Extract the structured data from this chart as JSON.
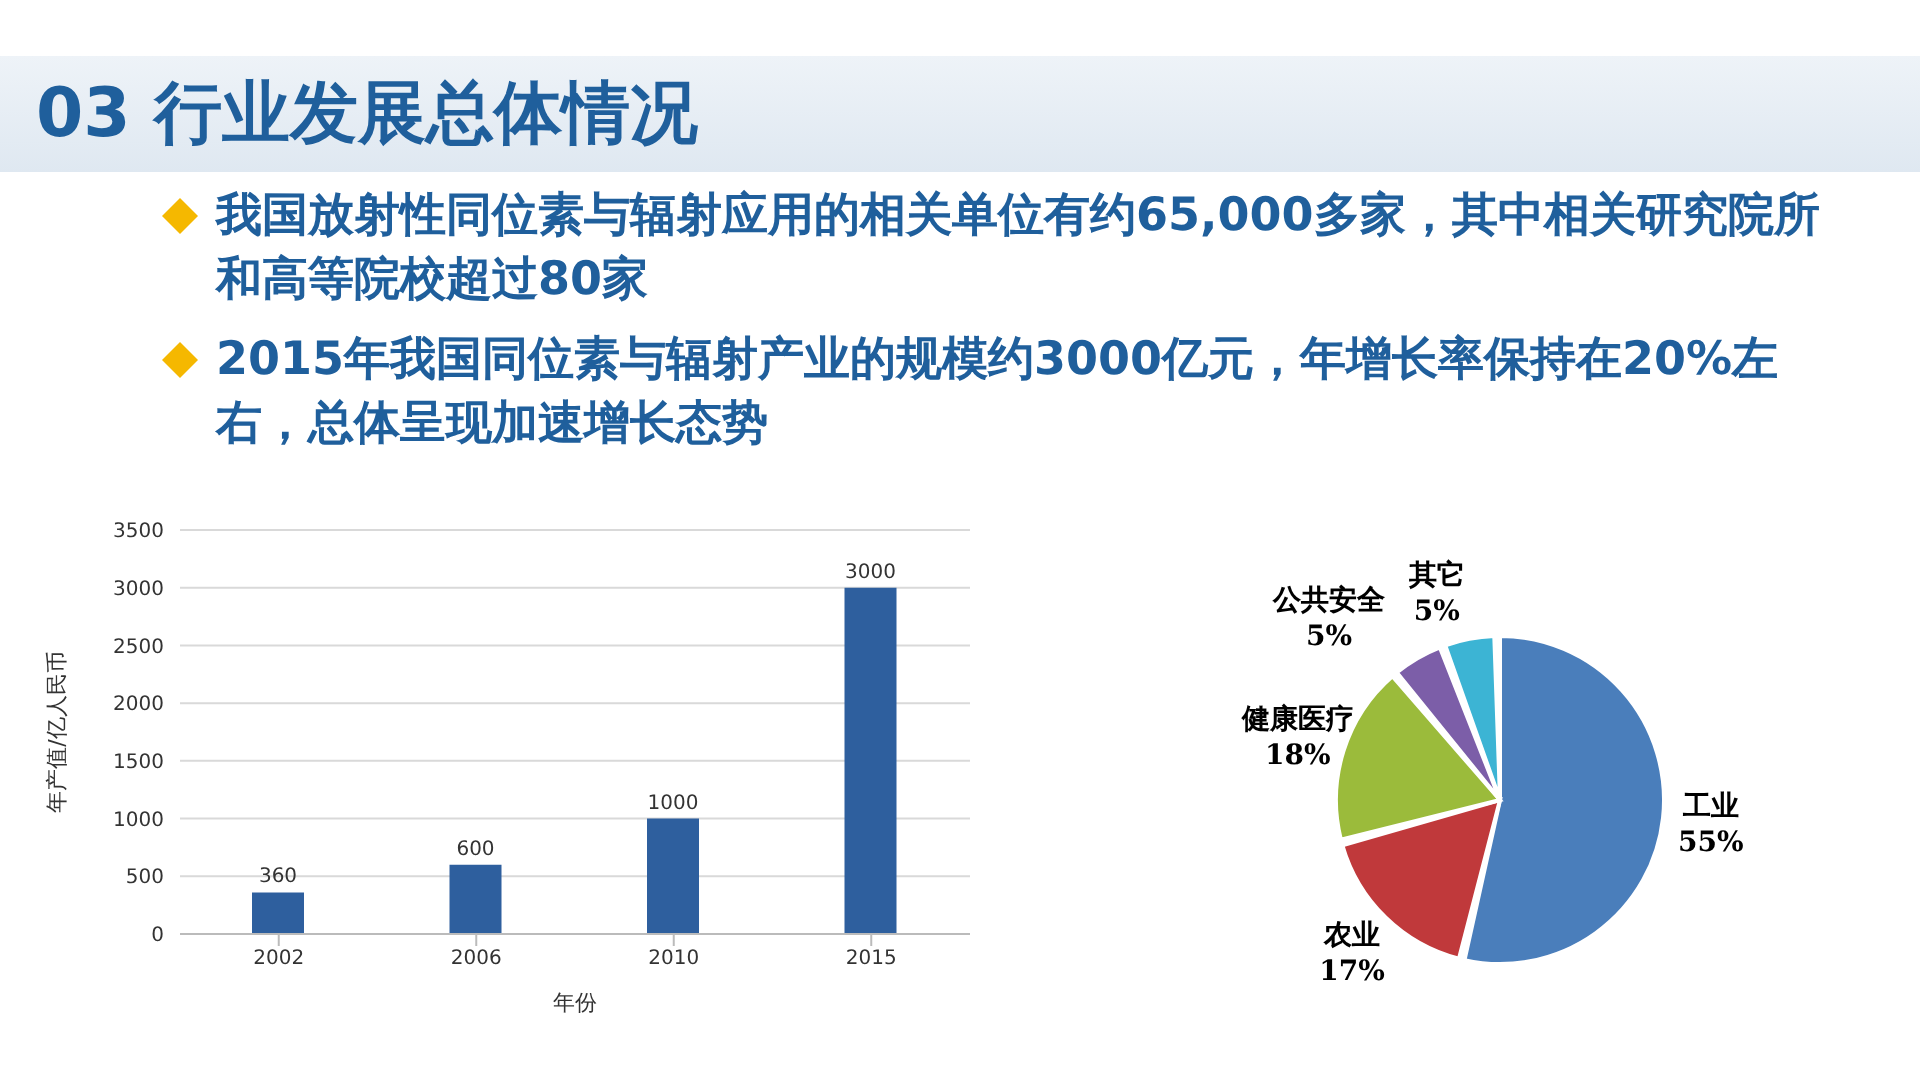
{
  "chart_data": [
    {
      "type": "bar",
      "title": "03 行业发展总体情况",
      "annotations": [
        "我国放射性同位素与辐射应用的相关单位有约65,000多家，其中相关研究院所和高等院校超过80家",
        "2015年我国同位素与辐射产业的规模约3000亿元，年增长率保持在20%左右，总体呈现加速增长态势"
      ],
      "categories": [
        "2002",
        "2006",
        "2010",
        "2015"
      ],
      "values": [
        360,
        600,
        1000,
        3000
      ],
      "color": "#2e5f9e",
      "xlabel": "年份",
      "ylabel": "年产值/亿人民币",
      "ylim": [
        0,
        3500
      ],
      "yticks": [
        0,
        500,
        1000,
        1500,
        2000,
        2500,
        3000,
        3500
      ],
      "grid": "y",
      "data_labels": true,
      "legend": false
    },
    {
      "type": "pie",
      "categories": [
        "工业",
        "农业",
        "健康医疗",
        "公共安全",
        "其它"
      ],
      "values": [
        55,
        17,
        18,
        5,
        5
      ],
      "value_labels": [
        "55%",
        "17%",
        "18%",
        "5%",
        "5%"
      ],
      "colors": [
        "#4a7ebb",
        "#c0393b",
        "#9bbb3b",
        "#7c5ea8",
        "#3cb4d4"
      ],
      "legend": false
    }
  ]
}
